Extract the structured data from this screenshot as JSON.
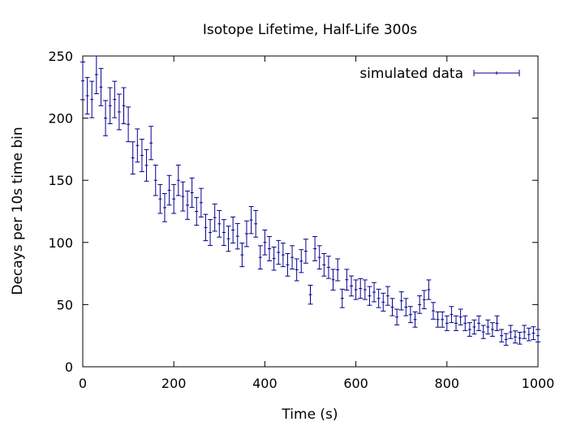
{
  "chart_data": {
    "type": "scatter",
    "title": "Isotope Lifetime, Half-Life 300s",
    "xlabel": "Time (s)",
    "ylabel": "Decays per 10s time bin",
    "xlim": [
      0,
      1000
    ],
    "ylim": [
      0,
      250
    ],
    "x_ticks": [
      0,
      200,
      400,
      600,
      800,
      1000
    ],
    "y_ticks": [
      0,
      50,
      100,
      150,
      200,
      250
    ],
    "grid": false,
    "legend_position": "top-right",
    "color": "#00008b",
    "series": [
      {
        "name": "simulated data",
        "error_bars": true,
        "x": [
          0,
          10,
          20,
          30,
          40,
          50,
          60,
          70,
          80,
          90,
          100,
          110,
          120,
          130,
          140,
          150,
          160,
          170,
          180,
          190,
          200,
          210,
          220,
          230,
          240,
          250,
          260,
          270,
          280,
          290,
          300,
          310,
          320,
          330,
          340,
          350,
          360,
          370,
          380,
          390,
          400,
          410,
          420,
          430,
          440,
          450,
          460,
          470,
          480,
          490,
          500,
          510,
          520,
          530,
          540,
          550,
          560,
          570,
          580,
          590,
          600,
          610,
          620,
          630,
          640,
          650,
          660,
          670,
          680,
          690,
          700,
          710,
          720,
          730,
          740,
          750,
          760,
          770,
          780,
          790,
          800,
          810,
          820,
          830,
          840,
          850,
          860,
          870,
          880,
          890,
          900,
          910,
          920,
          930,
          940,
          950,
          960,
          970,
          980,
          990,
          1000
        ],
        "y": [
          230,
          218,
          215,
          235,
          225,
          200,
          210,
          215,
          205,
          210,
          195,
          168,
          178,
          170,
          162,
          180,
          150,
          135,
          128,
          142,
          135,
          150,
          137,
          130,
          140,
          125,
          132,
          112,
          108,
          120,
          115,
          108,
          103,
          110,
          105,
          90,
          107,
          118,
          115,
          88,
          100,
          95,
          87,
          92,
          90,
          82,
          88,
          78,
          85,
          93,
          58,
          95,
          88,
          82,
          80,
          70,
          78,
          55,
          70,
          65,
          62,
          63,
          62,
          57,
          60,
          55,
          52,
          57,
          48,
          40,
          53,
          48,
          42,
          38,
          50,
          54,
          62,
          45,
          38,
          38,
          35,
          42,
          35,
          40,
          35,
          30,
          32,
          35,
          28,
          32,
          30,
          35,
          25,
          22,
          28,
          24,
          23,
          28,
          26,
          27,
          25
        ]
      }
    ]
  }
}
